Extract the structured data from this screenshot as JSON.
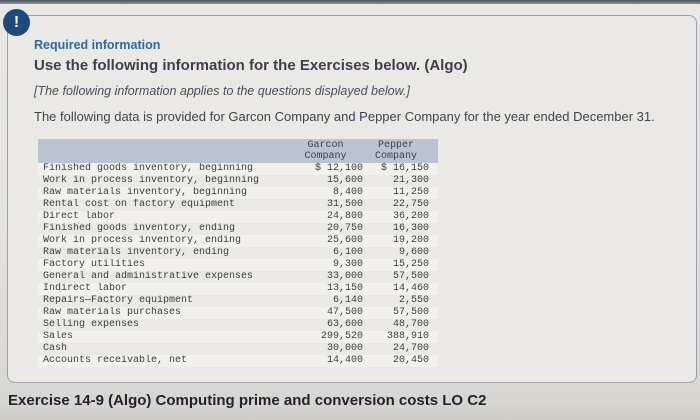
{
  "panel": {
    "alert_glyph": "!",
    "kicker": "Required information",
    "title": "Use the following information for the Exercises below. (Algo)",
    "note": "[The following information applies to the questions displayed below.]",
    "intro": "The following data is provided for Garcon Company and Pepper Company for the year ended December 31."
  },
  "table": {
    "header": {
      "garcon": [
        "Garcon",
        "Company"
      ],
      "pepper": [
        "Pepper",
        "Company"
      ]
    },
    "rows": [
      {
        "label": "Finished goods inventory, beginning",
        "garcon": "$ 12,100",
        "pepper": "$ 16,150"
      },
      {
        "label": "Work in process inventory, beginning",
        "garcon": "15,600",
        "pepper": "21,300"
      },
      {
        "label": "Raw materials inventory, beginning",
        "garcon": "8,400",
        "pepper": "11,250"
      },
      {
        "label": "Rental cost on factory equipment",
        "garcon": "31,500",
        "pepper": "22,750"
      },
      {
        "label": "Direct labor",
        "garcon": "24,800",
        "pepper": "36,200"
      },
      {
        "label": "Finished goods inventory, ending",
        "garcon": "20,750",
        "pepper": "16,300"
      },
      {
        "label": "Work in process inventory, ending",
        "garcon": "25,600",
        "pepper": "19,200"
      },
      {
        "label": "Raw materials inventory, ending",
        "garcon": "6,100",
        "pepper": "9,600"
      },
      {
        "label": "Factory utilities",
        "garcon": "9,300",
        "pepper": "15,250"
      },
      {
        "label": "General and administrative expenses",
        "garcon": "33,000",
        "pepper": "57,500"
      },
      {
        "label": "Indirect labor",
        "garcon": "13,150",
        "pepper": "14,460"
      },
      {
        "label": "Repairs—Factory equipment",
        "garcon": "6,140",
        "pepper": "2,550"
      },
      {
        "label": "Raw materials purchases",
        "garcon": "47,500",
        "pepper": "57,500"
      },
      {
        "label": "Selling expenses",
        "garcon": "63,600",
        "pepper": "48,700"
      },
      {
        "label": "Sales",
        "garcon": "299,520",
        "pepper": "388,910"
      },
      {
        "label": "Cash",
        "garcon": "30,000",
        "pepper": "24,700"
      },
      {
        "label": "Accounts receivable, net",
        "garcon": "14,400",
        "pepper": "20,450"
      }
    ]
  },
  "footer": {
    "exercise_title": "Exercise 14-9 (Algo) Computing prime and conversion costs LO C2"
  },
  "colors": {
    "accent_blue": "#2c6ba7",
    "alert_bg": "#1c4a7d",
    "table_header_band": "#bac4d0",
    "panel_border": "#99a2b1"
  }
}
